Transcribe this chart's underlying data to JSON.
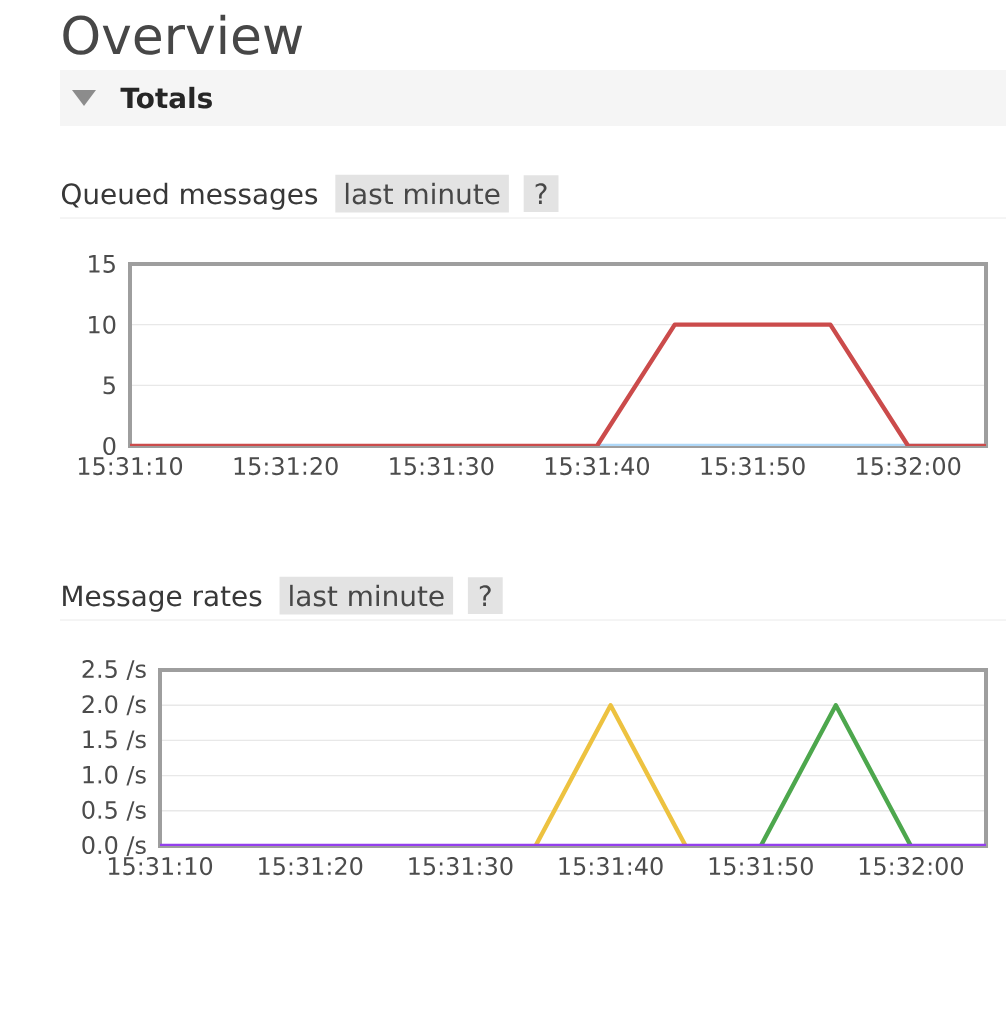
{
  "chart_data": [
    {
      "type": "line",
      "title": "Queued messages",
      "annotations": [
        "Overview",
        "Totals",
        "last minute",
        "?"
      ],
      "xlim": [
        15.519444,
        15.534722
      ],
      "xticks": [
        {
          "value": 15.519444,
          "label": "15:31:10"
        },
        {
          "value": 15.522222,
          "label": "15:31:20"
        },
        {
          "value": 15.525,
          "label": "15:31:30"
        },
        {
          "value": 15.527778,
          "label": "15:31:40"
        },
        {
          "value": 15.530556,
          "label": "15:31:50"
        },
        {
          "value": 15.533333,
          "label": "15:32:00"
        }
      ],
      "ylim": [
        0,
        15
      ],
      "yticks": [
        0,
        5,
        10,
        15
      ],
      "grid": "y",
      "line_style": "solid",
      "series": [
        {
          "color": "#afd8f8",
          "x": [
            15.527778,
            15.534722
          ],
          "values": [
            0,
            0
          ]
        },
        {
          "color": "#cb4b4b",
          "x": [
            15.519444,
            15.527778,
            15.529167,
            15.531944,
            15.533333,
            15.534722
          ],
          "values": [
            0,
            0,
            10,
            10,
            0,
            0
          ]
        }
      ]
    },
    {
      "type": "line",
      "title": "Message rates",
      "annotations": [
        "last minute",
        "?"
      ],
      "xlim": [
        15.519444,
        15.534722
      ],
      "xticks": [
        {
          "value": 15.519444,
          "label": "15:31:10"
        },
        {
          "value": 15.522222,
          "label": "15:31:20"
        },
        {
          "value": 15.525,
          "label": "15:31:30"
        },
        {
          "value": 15.527778,
          "label": "15:31:40"
        },
        {
          "value": 15.530556,
          "label": "15:31:50"
        },
        {
          "value": 15.533333,
          "label": "15:32:00"
        }
      ],
      "ylim": [
        0,
        2.5
      ],
      "yticks": [
        {
          "value": 0,
          "label": "0.0 /s"
        },
        {
          "value": 0.5,
          "label": "0.5 /s"
        },
        {
          "value": 1,
          "label": "1.0 /s"
        },
        {
          "value": 1.5,
          "label": "1.5 /s"
        },
        {
          "value": 2,
          "label": "2.0 /s"
        },
        {
          "value": 2.5,
          "label": "2.5 /s"
        }
      ],
      "grid": "y",
      "line_style": "solid",
      "series": [
        {
          "color": "#edc240",
          "x": [
            15.526389,
            15.527778,
            15.529167
          ],
          "values": [
            0,
            2,
            0
          ]
        },
        {
          "color": "#4da74d",
          "x": [
            15.530556,
            15.531944,
            15.533333
          ],
          "values": [
            0,
            2,
            0
          ]
        },
        {
          "color": "#9440ed",
          "x": [
            15.519444,
            15.534722
          ],
          "values": [
            0,
            0
          ]
        }
      ]
    }
  ]
}
